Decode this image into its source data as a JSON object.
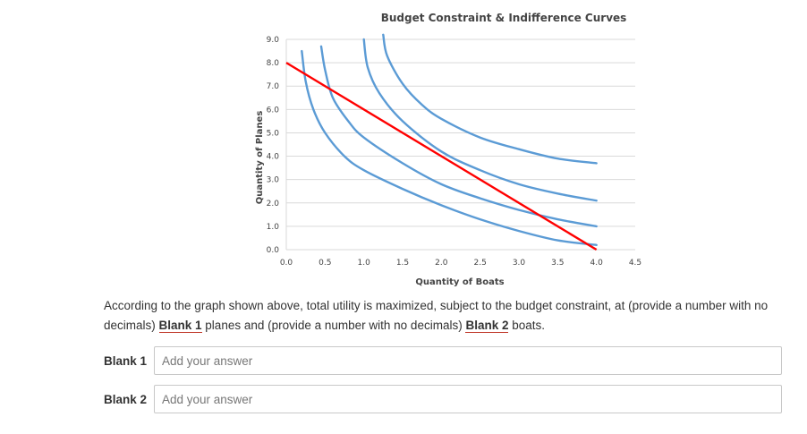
{
  "chart_data": {
    "type": "line",
    "title": "Budget Constraint & Indifference Curves",
    "xlabel": "Quantity of Boats",
    "ylabel": "Quantity of Planes",
    "xlim": [
      0,
      4.5
    ],
    "ylim": [
      0,
      9
    ],
    "x_ticks": [
      "0.0",
      "0.5",
      "1.0",
      "1.5",
      "2.0",
      "2.5",
      "3.0",
      "3.5",
      "4.0",
      "4.5"
    ],
    "y_ticks": [
      "0.0",
      "1.0",
      "2.0",
      "3.0",
      "4.0",
      "5.0",
      "6.0",
      "7.0",
      "8.0",
      "9.0"
    ],
    "grid": true,
    "series": [
      {
        "color": "#ff0000",
        "kind": "budget-line",
        "points": [
          [
            0,
            8.0
          ],
          [
            4.0,
            0
          ]
        ]
      },
      {
        "color": "#5b9bd5",
        "kind": "indifference-curve",
        "points": [
          [
            0.2,
            8.5
          ],
          [
            0.25,
            7.2
          ],
          [
            0.35,
            6.0
          ],
          [
            0.5,
            5.0
          ],
          [
            0.75,
            4.0
          ],
          [
            1.0,
            3.4
          ],
          [
            1.5,
            2.6
          ],
          [
            2.0,
            1.9
          ],
          [
            2.5,
            1.3
          ],
          [
            3.0,
            0.8
          ],
          [
            3.5,
            0.4
          ],
          [
            4.0,
            0.2
          ]
        ]
      },
      {
        "color": "#5b9bd5",
        "kind": "indifference-curve",
        "points": [
          [
            0.45,
            8.7
          ],
          [
            0.5,
            7.7
          ],
          [
            0.6,
            6.5
          ],
          [
            0.8,
            5.5
          ],
          [
            1.0,
            4.8
          ],
          [
            1.5,
            3.7
          ],
          [
            2.0,
            2.8
          ],
          [
            2.5,
            2.2
          ],
          [
            3.0,
            1.7
          ],
          [
            3.5,
            1.3
          ],
          [
            4.0,
            1.0
          ]
        ]
      },
      {
        "color": "#5b9bd5",
        "kind": "indifference-curve",
        "points": [
          [
            1.0,
            9.0
          ],
          [
            1.05,
            7.8
          ],
          [
            1.2,
            6.7
          ],
          [
            1.5,
            5.5
          ],
          [
            2.0,
            4.2
          ],
          [
            2.5,
            3.4
          ],
          [
            3.0,
            2.8
          ],
          [
            3.5,
            2.4
          ],
          [
            4.0,
            2.1
          ]
        ]
      },
      {
        "color": "#5b9bd5",
        "kind": "indifference-curve",
        "points": [
          [
            1.25,
            9.2
          ],
          [
            1.3,
            8.3
          ],
          [
            1.5,
            7.1
          ],
          [
            1.75,
            6.2
          ],
          [
            2.0,
            5.6
          ],
          [
            2.5,
            4.8
          ],
          [
            3.0,
            4.3
          ],
          [
            3.5,
            3.9
          ],
          [
            4.0,
            3.7
          ]
        ]
      }
    ]
  },
  "question": {
    "part1": "According to the graph shown above, total utility is maximized, subject to the budget constraint, at (provide a number with no decimals) ",
    "blank1_ref": "Blank 1",
    "part2": " planes and (provide a number with no decimals) ",
    "blank2_ref": "Blank 2",
    "part3": " boats."
  },
  "answers": [
    {
      "label": "Blank 1",
      "placeholder": "Add your answer",
      "value": ""
    },
    {
      "label": "Blank 2",
      "placeholder": "Add your answer",
      "value": ""
    }
  ]
}
